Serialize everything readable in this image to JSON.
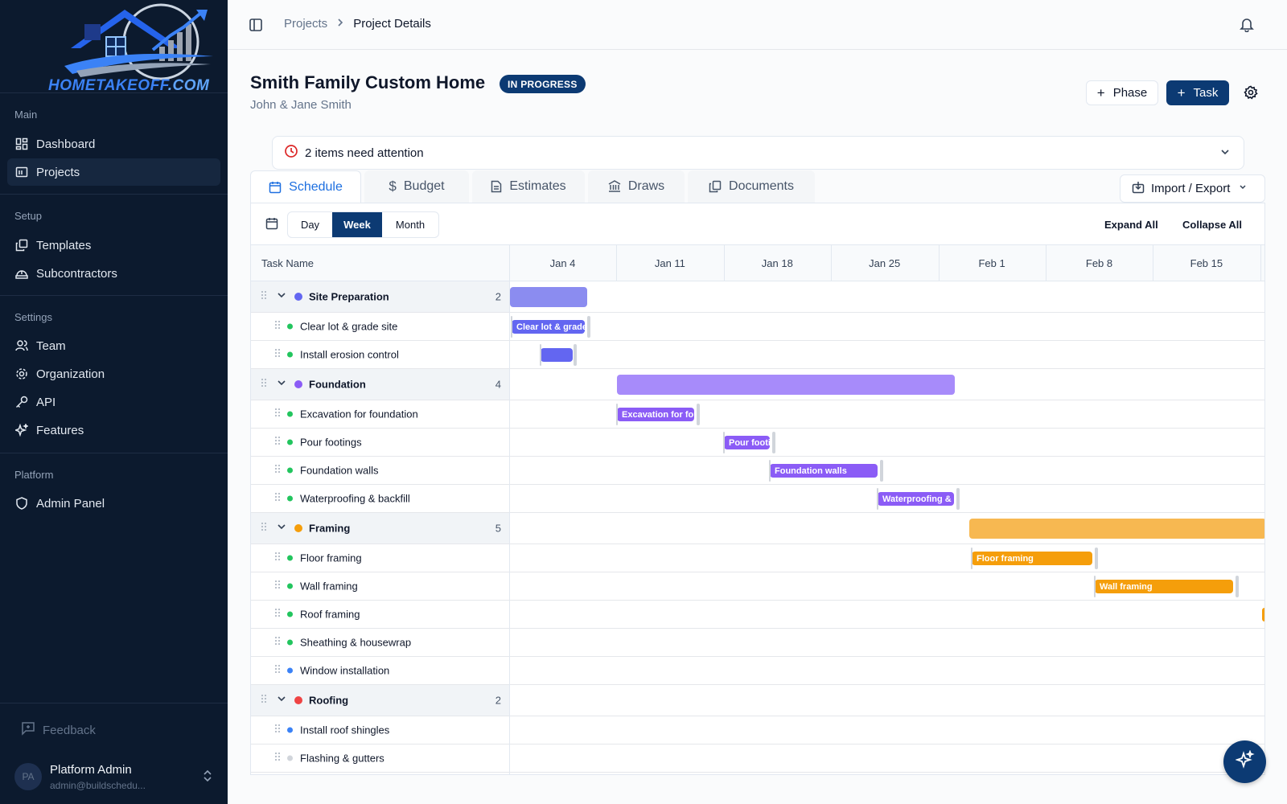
{
  "app": {
    "logo_text": "HOMETAKEOFF",
    "logo_suffix": ".COM"
  },
  "sidebar": {
    "sections": [
      {
        "label": "Main",
        "items": [
          {
            "label": "Dashboard",
            "icon": "dashboard-icon"
          },
          {
            "label": "Projects",
            "icon": "folder-icon",
            "active": true
          }
        ]
      },
      {
        "label": "Setup",
        "items": [
          {
            "label": "Templates",
            "icon": "copy-icon"
          },
          {
            "label": "Subcontractors",
            "icon": "hardhat-icon"
          }
        ]
      },
      {
        "label": "Settings",
        "items": [
          {
            "label": "Team",
            "icon": "users-icon"
          },
          {
            "label": "Organization",
            "icon": "gear-icon"
          },
          {
            "label": "API",
            "icon": "key-icon"
          },
          {
            "label": "Features",
            "icon": "sparkles-icon"
          }
        ]
      },
      {
        "label": "Platform",
        "items": [
          {
            "label": "Admin Panel",
            "icon": "shield-icon"
          }
        ]
      }
    ],
    "feedback_label": "Feedback",
    "user": {
      "initials": "PA",
      "name": "Platform Admin",
      "email": "admin@buildschedu..."
    }
  },
  "topbar": {
    "breadcrumb": [
      "Projects",
      "Project Details"
    ]
  },
  "project": {
    "title": "Smith Family Custom Home",
    "status": "IN PROGRESS",
    "client": "John & Jane Smith",
    "phase_button": "Phase",
    "task_button": "Task"
  },
  "alert": {
    "text": "2 items need attention"
  },
  "tabs": [
    {
      "label": "Schedule",
      "icon": "calendar-icon",
      "active": true
    },
    {
      "label": "Budget",
      "icon": "dollar-icon"
    },
    {
      "label": "Estimates",
      "icon": "document-icon"
    },
    {
      "label": "Draws",
      "icon": "bank-icon"
    },
    {
      "label": "Documents",
      "icon": "files-icon"
    }
  ],
  "import_export_label": "Import / Export",
  "gantt": {
    "view_modes": [
      "Day",
      "Week",
      "Month"
    ],
    "active_view": "Week",
    "expand_all": "Expand All",
    "collapse_all": "Collapse All",
    "task_column_label": "Task Name",
    "weeks": [
      "Jan 4",
      "Jan 11",
      "Jan 18",
      "Jan 25",
      "Feb 1",
      "Feb 8",
      "Feb 15"
    ],
    "colors": {
      "site": "#6366f1",
      "foundation": "#8b5cf6",
      "framing": "#f59e0b",
      "roofing": "#ef4444",
      "task_green": "#22c55e",
      "task_blue": "#3b82f6",
      "task_gray": "#d1d5db"
    },
    "rows": [
      {
        "type": "phase",
        "label": "Site Preparation",
        "count": "2",
        "color": "#6366f1"
      },
      {
        "type": "task",
        "label": "Clear lot & grade site",
        "status_color": "#22c55e",
        "bar_label": "Clear lot & grade site"
      },
      {
        "type": "task",
        "label": "Install erosion control",
        "status_color": "#22c55e",
        "bar_label": ""
      },
      {
        "type": "phase",
        "label": "Foundation",
        "count": "4",
        "color": "#8b5cf6"
      },
      {
        "type": "task",
        "label": "Excavation for foundation",
        "status_color": "#22c55e",
        "bar_label": "Excavation for foundation"
      },
      {
        "type": "task",
        "label": "Pour footings",
        "status_color": "#22c55e",
        "bar_label": "Pour footings"
      },
      {
        "type": "task",
        "label": "Foundation walls",
        "status_color": "#22c55e",
        "bar_label": "Foundation walls"
      },
      {
        "type": "task",
        "label": "Waterproofing & backfill",
        "status_color": "#22c55e",
        "bar_label": "Waterproofing & backfill"
      },
      {
        "type": "phase",
        "label": "Framing",
        "count": "5",
        "color": "#f59e0b"
      },
      {
        "type": "task",
        "label": "Floor framing",
        "status_color": "#22c55e",
        "bar_label": "Floor framing"
      },
      {
        "type": "task",
        "label": "Wall framing",
        "status_color": "#22c55e",
        "bar_label": "Wall framing"
      },
      {
        "type": "task",
        "label": "Roof framing",
        "status_color": "#22c55e",
        "bar_label": ""
      },
      {
        "type": "task",
        "label": "Sheathing & housewrap",
        "status_color": "#22c55e",
        "bar_label": ""
      },
      {
        "type": "task",
        "label": "Window installation",
        "status_color": "#3b82f6",
        "bar_label": ""
      },
      {
        "type": "phase",
        "label": "Roofing",
        "count": "2",
        "color": "#ef4444"
      },
      {
        "type": "task",
        "label": "Install roof shingles",
        "status_color": "#3b82f6",
        "bar_label": ""
      },
      {
        "type": "task",
        "label": "Flashing & gutters",
        "status_color": "#d1d5db",
        "bar_label": ""
      }
    ]
  }
}
